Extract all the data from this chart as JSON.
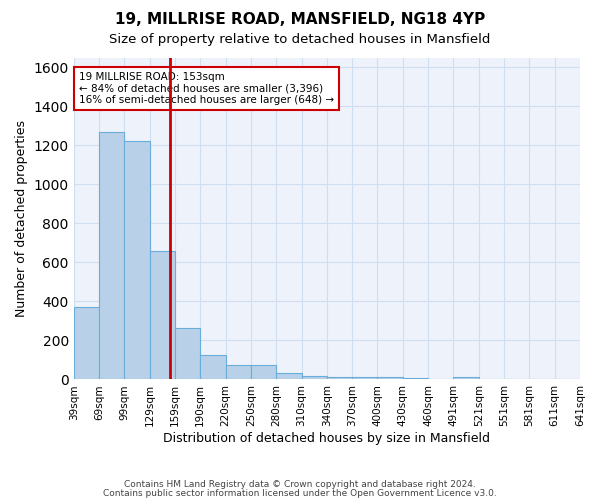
{
  "title1": "19, MILLRISE ROAD, MANSFIELD, NG18 4YP",
  "title2": "Size of property relative to detached houses in Mansfield",
  "xlabel": "Distribution of detached houses by size in Mansfield",
  "ylabel": "Number of detached properties",
  "bin_labels": [
    "39sqm",
    "69sqm",
    "99sqm",
    "129sqm",
    "159sqm",
    "190sqm",
    "220sqm",
    "250sqm",
    "280sqm",
    "310sqm",
    "340sqm",
    "370sqm",
    "400sqm",
    "430sqm",
    "460sqm",
    "491sqm",
    "521sqm",
    "551sqm",
    "581sqm",
    "611sqm",
    "641sqm"
  ],
  "bar_values": [
    370,
    1270,
    1220,
    660,
    265,
    125,
    75,
    75,
    35,
    20,
    15,
    15,
    15,
    10,
    0,
    15,
    0,
    0,
    0,
    0
  ],
  "bar_color": "#b8d0e8",
  "bar_edge_color": "#6aacda",
  "grid_color": "#d0dff0",
  "background_color": "#eef2fb",
  "vline_color": "#cc0000",
  "vline_position": 3.8,
  "annotation_text": "19 MILLRISE ROAD: 153sqm\n← 84% of detached houses are smaller (3,396)\n16% of semi-detached houses are larger (648) →",
  "annotation_box_color": "white",
  "annotation_box_edge": "#cc0000",
  "ylim": [
    0,
    1650
  ],
  "footer1": "Contains HM Land Registry data © Crown copyright and database right 2024.",
  "footer2": "Contains public sector information licensed under the Open Government Licence v3.0."
}
